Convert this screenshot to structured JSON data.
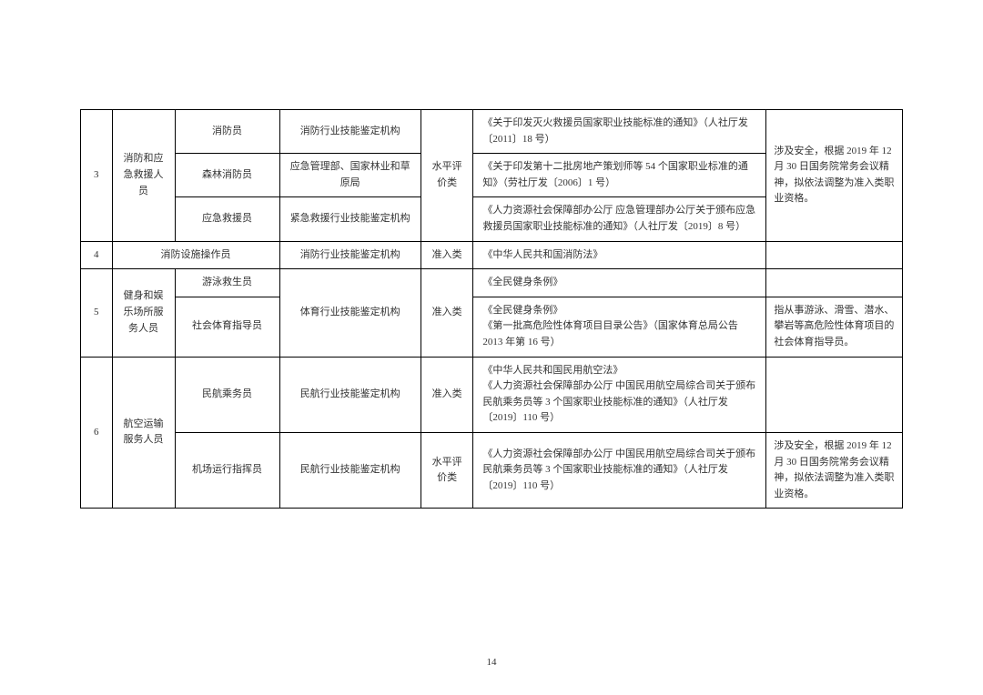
{
  "page_number": "14",
  "table": {
    "rows": [
      {
        "num": "3",
        "category": "消防和应急救援人员",
        "subrows": [
          {
            "job": "消防员",
            "org": "消防行业技能鉴定机构",
            "type": "水平评价类",
            "basis": "《关于印发灭火救援员国家职业技能标准的通知》（人社厅发〔2011〕18 号）",
            "note": "涉及安全，根据 2019 年 12 月 30 日国务院常务会议精神，拟依法调整为准入类职业资格。"
          },
          {
            "job": "森林消防员",
            "org": "应急管理部、国家林业和草原局",
            "basis": "《关于印发第十二批房地产策划师等 54 个国家职业标准的通知》（劳社厅发〔2006〕1 号）"
          },
          {
            "job": "应急救援员",
            "org": "紧急救援行业技能鉴定机构",
            "basis": "《人力资源社会保障部办公厅 应急管理部办公厅关于颁布应急救援员国家职业技能标准的通知》（人社厅发〔2019〕8 号）"
          }
        ]
      },
      {
        "num": "4",
        "job": "消防设施操作员",
        "org": "消防行业技能鉴定机构",
        "type": "准入类",
        "basis": "《中华人民共和国消防法》",
        "note": ""
      },
      {
        "num": "5",
        "category": "健身和娱乐场所服务人员",
        "subrows": [
          {
            "job": "游泳救生员",
            "org": "体育行业技能鉴定机构",
            "type": "准入类",
            "basis": "《全民健身条例》",
            "note": ""
          },
          {
            "job": "社会体育指导员",
            "basis": "《全民健身条例》\n《第一批高危险性体育项目目录公告》（国家体育总局公告 2013 年第 16 号）",
            "note": "指从事游泳、滑雪、潜水、攀岩等高危险性体育项目的社会体育指导员。"
          }
        ]
      },
      {
        "num": "6",
        "category": "航空运输服务人员",
        "subrows": [
          {
            "job": "民航乘务员",
            "org": "民航行业技能鉴定机构",
            "type": "准入类",
            "basis": "《中华人民共和国民用航空法》\n《人力资源社会保障部办公厅 中国民用航空局综合司关于颁布民航乘务员等 3 个国家职业技能标准的通知》（人社厅发〔2019〕110 号）",
            "note": ""
          },
          {
            "job": "机场运行指挥员",
            "org": "民航行业技能鉴定机构",
            "type": "水平评价类",
            "basis": "《人力资源社会保障部办公厅 中国民用航空局综合司关于颁布民航乘务员等 3 个国家职业技能标准的通知》（人社厅发〔2019〕110 号）",
            "note": "涉及安全，根据 2019 年 12 月 30 日国务院常务会议精神，拟依法调整为准入类职业资格。"
          }
        ]
      }
    ]
  }
}
